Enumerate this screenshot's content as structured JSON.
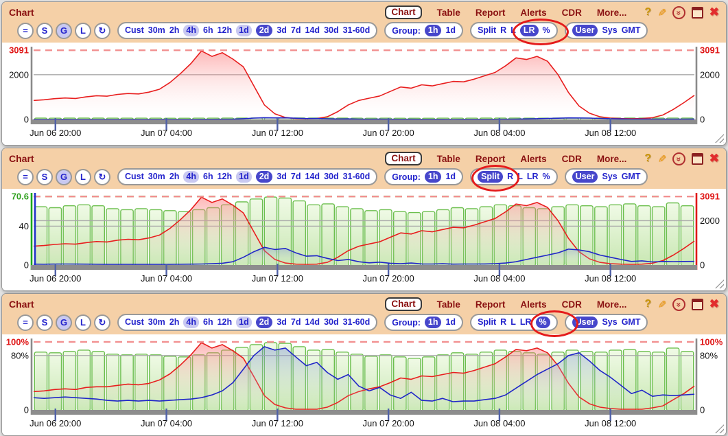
{
  "chrome": {
    "title": "Chart",
    "tabs": [
      {
        "label": "Chart",
        "selected": true
      },
      {
        "label": "Table"
      },
      {
        "label": "Report"
      },
      {
        "label": "Alerts"
      },
      {
        "label": "CDR"
      },
      {
        "label": "More..."
      }
    ],
    "window_icons": [
      "help",
      "edit-pencil",
      "collapse",
      "maximize",
      "close"
    ],
    "quick_buttons": [
      "=",
      "S",
      "G",
      "L",
      "↻"
    ],
    "ranges": [
      "Cust",
      "30m",
      "2h",
      "4h",
      "6h",
      "12h",
      "1d",
      "2d",
      "3d",
      "7d",
      "14d",
      "30d",
      "31-60d"
    ],
    "range_selected": "2d",
    "range_highlighted": [
      "4h",
      "1d"
    ],
    "group_label": "Group:",
    "group_options": [
      "1h",
      "1d"
    ],
    "group_selected": "1h",
    "split_options": [
      "Split",
      "R",
      "L",
      "LR",
      "%"
    ],
    "tz_options": [
      "User",
      "Sys",
      "GMT"
    ],
    "tz_selected": "User",
    "colors": {
      "header_bg": "#f5d0a7",
      "accent_blue": "#2323cc",
      "selected_pill": "#4747cb",
      "title_red": "#8b1212",
      "annotation_red": "#e41b1b",
      "series_red": "#e81e1e",
      "series_blue": "#2026c8",
      "series_green": "#6cbf4e"
    }
  },
  "chart_data": [
    {
      "type": "composite",
      "mode": "LR",
      "circled": "LR",
      "x_ticks": [
        {
          "pos": 0.033,
          "label": "Jun 06 20:00"
        },
        {
          "pos": 0.201,
          "label": "Jun 07 04:00"
        },
        {
          "pos": 0.369,
          "label": "Jun 07 12:00"
        },
        {
          "pos": 0.537,
          "label": "Jun 07 20:00"
        },
        {
          "pos": 0.705,
          "label": "Jun 08 04:00"
        },
        {
          "pos": 0.873,
          "label": "Jun 08 12:00"
        }
      ],
      "left_axis": {
        "max": 3190,
        "axis_colors": [
          "#8a8a8a"
        ],
        "ticks": [
          {
            "v": 3091,
            "label": "3091",
            "color": "#e01818",
            "bold": true,
            "dash": "#f29090"
          },
          {
            "v": 2000,
            "label": "2000",
            "grid": true
          },
          {
            "v": 0,
            "label": "0"
          }
        ]
      },
      "right_axis": {
        "max": 3190,
        "axis_colors": [
          "#8a8a8a"
        ],
        "ticks": [
          {
            "v": 3091,
            "label": "3091",
            "color": "#e01818",
            "bold": true
          },
          {
            "v": 2000,
            "label": "2000"
          },
          {
            "v": 0,
            "label": "0"
          }
        ]
      },
      "bars": {
        "name": "hourly-bars",
        "stroke": "#6cbf4e",
        "max": 3190,
        "values": [
          60,
          59,
          61,
          62,
          61,
          58,
          57,
          58,
          57,
          56,
          55,
          57,
          59,
          62,
          65,
          68,
          70,
          69,
          66,
          62,
          63,
          60,
          58,
          56,
          57,
          55,
          54,
          55,
          57,
          59,
          58,
          60,
          62,
          61,
          59,
          58,
          60,
          62,
          61,
          60,
          62,
          63,
          61,
          60,
          64,
          61
        ]
      },
      "lines": [
        {
          "name": "red-series",
          "color": "#e81e1e",
          "area": "red",
          "max": 3190,
          "values": [
            850,
            880,
            930,
            960,
            940,
            1010,
            1060,
            1040,
            1120,
            1160,
            1140,
            1220,
            1350,
            1650,
            2050,
            2500,
            3060,
            2820,
            2980,
            2700,
            2350,
            1500,
            650,
            250,
            90,
            40,
            30,
            40,
            120,
            350,
            650,
            850,
            950,
            1050,
            1250,
            1450,
            1400,
            1550,
            1500,
            1600,
            1700,
            1680,
            1800,
            1950,
            2100,
            2400,
            2750,
            2680,
            2820,
            2600,
            2000,
            1200,
            600,
            280,
            120,
            60,
            40,
            35,
            40,
            80,
            200,
            450,
            750,
            1080
          ]
        },
        {
          "name": "blue-series",
          "color": "#2026c8",
          "area": "blue",
          "max": 3190,
          "values": [
            4,
            4,
            4,
            5,
            4,
            4,
            4,
            4,
            3,
            4,
            3,
            4,
            3,
            4,
            4,
            4,
            5,
            6,
            8,
            15,
            35,
            60,
            80,
            70,
            75,
            55,
            40,
            42,
            30,
            20,
            25,
            15,
            10,
            13,
            8,
            6,
            9,
            5,
            5,
            6,
            4,
            5,
            5,
            5,
            6,
            9,
            15,
            25,
            35,
            45,
            55,
            72,
            68,
            60,
            45,
            35,
            25,
            16,
            19,
            14,
            16,
            16,
            16,
            17
          ]
        }
      ]
    },
    {
      "type": "composite",
      "mode": "Split",
      "circled": "Split",
      "x_ticks": [
        {
          "pos": 0.033,
          "label": "Jun 06 20:00"
        },
        {
          "pos": 0.201,
          "label": "Jun 07 04:00"
        },
        {
          "pos": 0.369,
          "label": "Jun 07 12:00"
        },
        {
          "pos": 0.537,
          "label": "Jun 07 20:00"
        },
        {
          "pos": 0.705,
          "label": "Jun 08 04:00"
        },
        {
          "pos": 0.873,
          "label": "Jun 08 12:00"
        }
      ],
      "left_axis": {
        "max": 72.8,
        "axis_colors": [
          "#1ba81b",
          "#2233cc"
        ],
        "ticks": [
          {
            "v": 70.6,
            "label": "70.6",
            "color": "#2fa01e",
            "bold": true,
            "dash": "#8fdc7f",
            "dash_span": 0.95
          },
          {
            "v": 40,
            "label": "40",
            "grid": true
          },
          {
            "v": 0,
            "label": "0"
          }
        ]
      },
      "right_axis": {
        "max": 3190,
        "axis_colors": [
          "#e01818"
        ],
        "ticks": [
          {
            "v": 3091,
            "label": "3091",
            "color": "#e01818",
            "bold": true,
            "dash": "#f29090"
          },
          {
            "v": 2000,
            "label": "2000",
            "grid": true
          },
          {
            "v": 0,
            "label": "0"
          }
        ]
      },
      "bars": {
        "name": "hourly-bars",
        "stroke": "#6cbf4e",
        "max": 72.8,
        "values": [
          60,
          59,
          61,
          62,
          61,
          58,
          57,
          58,
          57,
          56,
          55,
          57,
          59,
          62,
          65,
          68,
          70,
          69,
          66,
          62,
          63,
          60,
          58,
          56,
          57,
          55,
          54,
          55,
          57,
          59,
          58,
          60,
          62,
          61,
          59,
          58,
          60,
          62,
          61,
          60,
          62,
          63,
          61,
          60,
          64,
          61
        ]
      },
      "lines": [
        {
          "name": "red-series",
          "color": "#e81e1e",
          "area": "red",
          "max": 3190,
          "values": [
            850,
            880,
            930,
            960,
            940,
            1010,
            1060,
            1040,
            1120,
            1160,
            1140,
            1220,
            1350,
            1650,
            2050,
            2500,
            3060,
            2820,
            2980,
            2700,
            2350,
            1500,
            650,
            250,
            90,
            40,
            30,
            40,
            120,
            350,
            650,
            850,
            950,
            1050,
            1250,
            1450,
            1400,
            1550,
            1500,
            1600,
            1700,
            1680,
            1800,
            1950,
            2100,
            2400,
            2750,
            2680,
            2820,
            2600,
            2000,
            1200,
            600,
            280,
            120,
            60,
            40,
            35,
            40,
            80,
            200,
            450,
            750,
            1080
          ]
        },
        {
          "name": "blue-series",
          "color": "#2026c8",
          "area": "blue",
          "max": 3190,
          "values": [
            40,
            38,
            42,
            45,
            42,
            40,
            38,
            35,
            33,
            35,
            33,
            35,
            34,
            35,
            38,
            40,
            45,
            60,
            80,
            150,
            350,
            600,
            800,
            700,
            750,
            550,
            400,
            420,
            300,
            200,
            250,
            150,
            100,
            130,
            80,
            60,
            90,
            50,
            45,
            60,
            40,
            45,
            45,
            50,
            60,
            90,
            150,
            250,
            350,
            450,
            550,
            720,
            680,
            600,
            450,
            350,
            250,
            160,
            190,
            140,
            160,
            155,
            160,
            165
          ]
        }
      ]
    },
    {
      "type": "composite",
      "mode": "%",
      "circled": "%",
      "x_ticks": [
        {
          "pos": 0.033,
          "label": "Jun 06 20:00"
        },
        {
          "pos": 0.201,
          "label": "Jun 07 04:00"
        },
        {
          "pos": 0.369,
          "label": "Jun 07 12:00"
        },
        {
          "pos": 0.537,
          "label": "Jun 07 20:00"
        },
        {
          "pos": 0.705,
          "label": "Jun 08 04:00"
        },
        {
          "pos": 0.873,
          "label": "Jun 08 12:00"
        }
      ],
      "left_axis": {
        "max": 103,
        "axis_colors": [
          "#8a8a8a"
        ],
        "ticks": [
          {
            "v": 100,
            "label": "100%",
            "color": "#e01818",
            "bold": true,
            "dash": "#f29090"
          },
          {
            "v": 80,
            "label": "80%",
            "grid": true
          },
          {
            "v": 0,
            "label": "0"
          }
        ]
      },
      "right_axis": {
        "max": 103,
        "axis_colors": [
          "#8a8a8a"
        ],
        "ticks": [
          {
            "v": 100,
            "label": "100%",
            "color": "#e01818",
            "bold": true
          },
          {
            "v": 80,
            "label": "80%"
          },
          {
            "v": 0,
            "label": "0"
          }
        ]
      },
      "bars": {
        "name": "hourly-bars",
        "stroke": "#6cbf4e",
        "max": 103,
        "values": [
          85,
          84,
          86,
          88,
          86,
          82,
          81,
          82,
          81,
          79,
          78,
          81,
          84,
          88,
          92,
          96,
          99,
          98,
          93,
          88,
          89,
          85,
          82,
          79,
          81,
          78,
          76,
          78,
          81,
          84,
          82,
          85,
          88,
          86,
          84,
          82,
          85,
          88,
          86,
          85,
          88,
          89,
          86,
          85,
          91,
          86
        ]
      },
      "lines": [
        {
          "name": "red-series",
          "color": "#e81e1e",
          "area": "red",
          "max": 103,
          "values": [
            27,
            28,
            30,
            31,
            30,
            33,
            34,
            34,
            36,
            38,
            37,
            39,
            44,
            53,
            66,
            81,
            99,
            91,
            96,
            87,
            76,
            49,
            21,
            8,
            3,
            1,
            1,
            1,
            4,
            11,
            21,
            27,
            31,
            34,
            40,
            47,
            45,
            50,
            49,
            52,
            55,
            54,
            58,
            63,
            68,
            78,
            89,
            87,
            91,
            84,
            65,
            39,
            19,
            9,
            4,
            2,
            1,
            1,
            1,
            3,
            6,
            15,
            24,
            35
          ]
        },
        {
          "name": "blue-series",
          "color": "#2026c8",
          "area": "blue",
          "max": 103,
          "values": [
            18,
            17,
            18,
            19,
            18,
            17,
            16,
            14,
            13,
            14,
            13,
            14,
            13,
            14,
            15,
            16,
            18,
            22,
            28,
            40,
            60,
            80,
            93,
            88,
            91,
            78,
            65,
            70,
            55,
            45,
            52,
            35,
            28,
            33,
            22,
            17,
            26,
            14,
            13,
            17,
            12,
            13,
            13,
            15,
            17,
            22,
            32,
            42,
            52,
            60,
            68,
            80,
            84,
            72,
            58,
            48,
            36,
            24,
            29,
            20,
            22,
            21,
            22,
            23
          ]
        }
      ]
    }
  ]
}
